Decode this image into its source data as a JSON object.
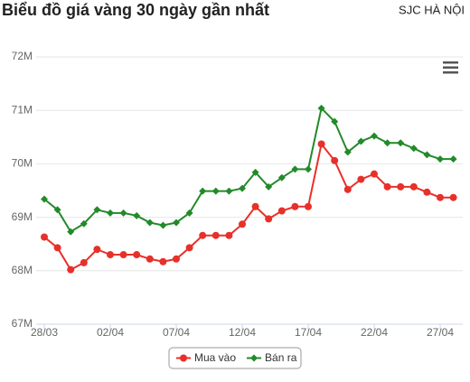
{
  "chart_data": {
    "type": "line",
    "title": "Biểu đồ giá vàng 30 ngày gần nhất",
    "subtitle": "SJC HÀ NỘI",
    "categories": [
      "28/03",
      null,
      null,
      null,
      null,
      "02/04",
      null,
      null,
      null,
      null,
      "07/04",
      null,
      null,
      null,
      null,
      "12/04",
      null,
      null,
      null,
      null,
      "17/04",
      null,
      null,
      null,
      null,
      "22/04",
      null,
      null,
      null,
      null,
      "27/04",
      null
    ],
    "series": [
      {
        "name": "Mua vào",
        "color": "#e8302a",
        "marker": "circle",
        "values": [
          68.63,
          68.43,
          68.02,
          68.15,
          68.4,
          68.3,
          68.3,
          68.3,
          68.22,
          68.17,
          68.22,
          68.43,
          68.66,
          68.66,
          68.66,
          68.87,
          69.2,
          68.97,
          69.12,
          69.2,
          69.2,
          70.37,
          70.06,
          69.52,
          69.71,
          69.81,
          69.57,
          69.57,
          69.57,
          69.47,
          69.37,
          69.37
        ]
      },
      {
        "name": "Bán ra",
        "color": "#238a2a",
        "marker": "diamond",
        "values": [
          69.34,
          69.14,
          68.73,
          68.88,
          69.14,
          69.08,
          69.08,
          69.03,
          68.9,
          68.85,
          68.9,
          69.08,
          69.49,
          69.49,
          69.49,
          69.54,
          69.84,
          69.57,
          69.74,
          69.9,
          69.9,
          71.04,
          70.79,
          70.22,
          70.42,
          70.52,
          70.39,
          70.39,
          70.29,
          70.17,
          70.09,
          70.09
        ]
      }
    ],
    "ylim": [
      67,
      72
    ],
    "yticks": [
      {
        "value": 67,
        "label": "67M"
      },
      {
        "value": 68,
        "label": "68M"
      },
      {
        "value": 69,
        "label": "69M"
      },
      {
        "value": 70,
        "label": "70M"
      },
      {
        "value": 71,
        "label": "71M"
      },
      {
        "value": 72,
        "label": "72M"
      }
    ],
    "grid": true,
    "legend": "bottom"
  }
}
